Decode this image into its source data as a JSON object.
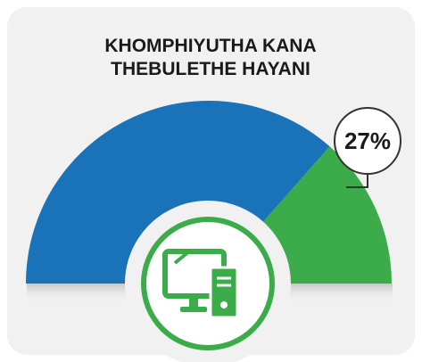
{
  "chart_data": {
    "type": "pie",
    "half": true,
    "title": [
      "KHOMPHIYUTHA KANA",
      "THEBULETHE HAYANI"
    ],
    "values": [
      73,
      27
    ],
    "value_labels": [
      null,
      "27%"
    ],
    "colors": [
      "#1a73b8",
      "#3cab4a"
    ]
  }
}
